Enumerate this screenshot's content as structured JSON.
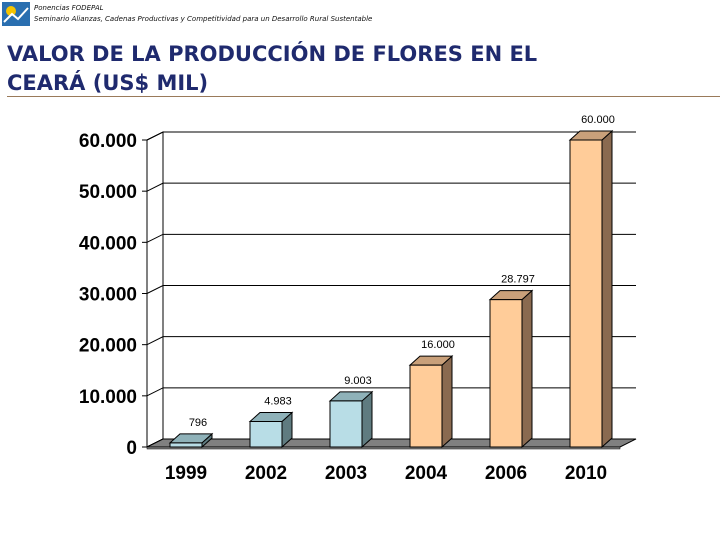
{
  "header": {
    "line1": "Ponencias FODEPAL",
    "line2": "Seminario Alianzas, Cadenas Productivas y Competitividad para un Desarrollo Rural Sustentable"
  },
  "title_line1": "VALOR DE LA PRODUCCIÓN DE FLORES EN EL",
  "title_line2": "CEARÁ (US$ MIL)",
  "chart_data": {
    "type": "bar",
    "title": "VALOR DE LA PRODUCCIÓN DE FLORES EN EL CEARÁ (US$ MIL)",
    "categories": [
      "1999",
      "2002",
      "2003",
      "2004",
      "2006",
      "2010"
    ],
    "values": [
      796,
      4983,
      9003,
      16000,
      28797,
      60000
    ],
    "data_labels": [
      "796",
      "4.983",
      "9.003",
      "16.000",
      "28.797",
      "60.000"
    ],
    "y_ticks": [
      0,
      10000,
      20000,
      30000,
      40000,
      50000,
      60000
    ],
    "y_tick_labels": [
      "0",
      "10.000",
      "20.000",
      "30.000",
      "40.000",
      "50.000",
      "60.000"
    ],
    "ylim": [
      0,
      60000
    ],
    "grid": true,
    "bar_colors": [
      "#b8dde6",
      "#b8dde6",
      "#b8dde6",
      "#ffcc99",
      "#ffcc99",
      "#ffcc99"
    ],
    "xlabel": "",
    "ylabel": ""
  }
}
